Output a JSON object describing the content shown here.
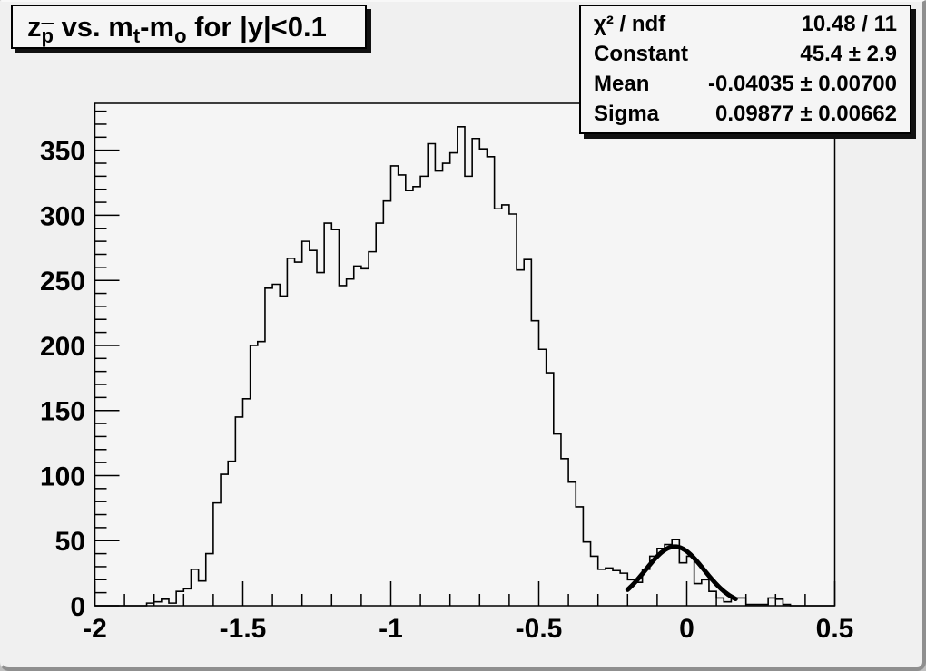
{
  "title": {
    "part_z": "z",
    "sub_pbar": "p",
    "part_vs": " vs. m",
    "sub_t": "t",
    "part_minus_m": "-m",
    "sub_o": "o",
    "part_rest": " for |y|<0.1"
  },
  "stats": {
    "rows": [
      {
        "label": "χ² / ndf",
        "value": "10.48 / 11"
      },
      {
        "label": "Constant",
        "value": "45.4 ± 2.9"
      },
      {
        "label": "Mean",
        "value": "-0.04035 ± 0.00700"
      },
      {
        "label": "Sigma",
        "value": "0.09877 ± 0.00662"
      }
    ]
  },
  "chart_data": {
    "type": "bar",
    "subtype": "step-histogram",
    "title": "z_pbar vs. m_t-m_o for |y|<0.1",
    "xlabel": "",
    "ylabel": "",
    "xlim": [
      -2.0,
      0.5
    ],
    "ylim": [
      0,
      386
    ],
    "x_tick_labels": [
      "-2",
      "-1.5",
      "-1",
      "-0.5",
      "0",
      "0.5"
    ],
    "x_ticks": [
      -2.0,
      -1.5,
      -1.0,
      -0.5,
      0.0,
      0.5
    ],
    "y_tick_labels": [
      "0",
      "50",
      "100",
      "150",
      "200",
      "250",
      "300",
      "350"
    ],
    "y_ticks": [
      0,
      50,
      100,
      150,
      200,
      250,
      300,
      350
    ],
    "x_minor_tick_step": 0.1,
    "y_minor_tick_step": 10,
    "grid": false,
    "legend": "none",
    "bin_start": -2.0,
    "bin_width": 0.025,
    "bin_counts": [
      0,
      0,
      0,
      0,
      0,
      0,
      0,
      2,
      3,
      5,
      2,
      11,
      13,
      28,
      19,
      40,
      79,
      101,
      111,
      145,
      159,
      200,
      203,
      244,
      247,
      238,
      267,
      264,
      280,
      273,
      256,
      294,
      289,
      246,
      251,
      261,
      259,
      272,
      294,
      311,
      338,
      331,
      319,
      322,
      330,
      355,
      334,
      340,
      348,
      368,
      330,
      359,
      351,
      345,
      305,
      308,
      301,
      258,
      266,
      219,
      197,
      179,
      132,
      113,
      95,
      76,
      49,
      38,
      28,
      29,
      27,
      25,
      20,
      18,
      28,
      38,
      44,
      47,
      51,
      33,
      38,
      17,
      20,
      11,
      6,
      3,
      6,
      6,
      1,
      1,
      1,
      6,
      5,
      1,
      0,
      0,
      0,
      0,
      0,
      0
    ],
    "fit": {
      "shape": "gaussian",
      "constant": 45.4,
      "mean": -0.04035,
      "sigma": 0.09877,
      "draw_range": [
        -0.2,
        0.165
      ],
      "color": "#000000",
      "line_width": 5
    },
    "colors": {
      "histogram_line": "#000000",
      "frame_line": "#000000",
      "frame_fill": "#f5f5f5",
      "canvas_background": "#f0f0f0",
      "text": "#000000"
    }
  }
}
